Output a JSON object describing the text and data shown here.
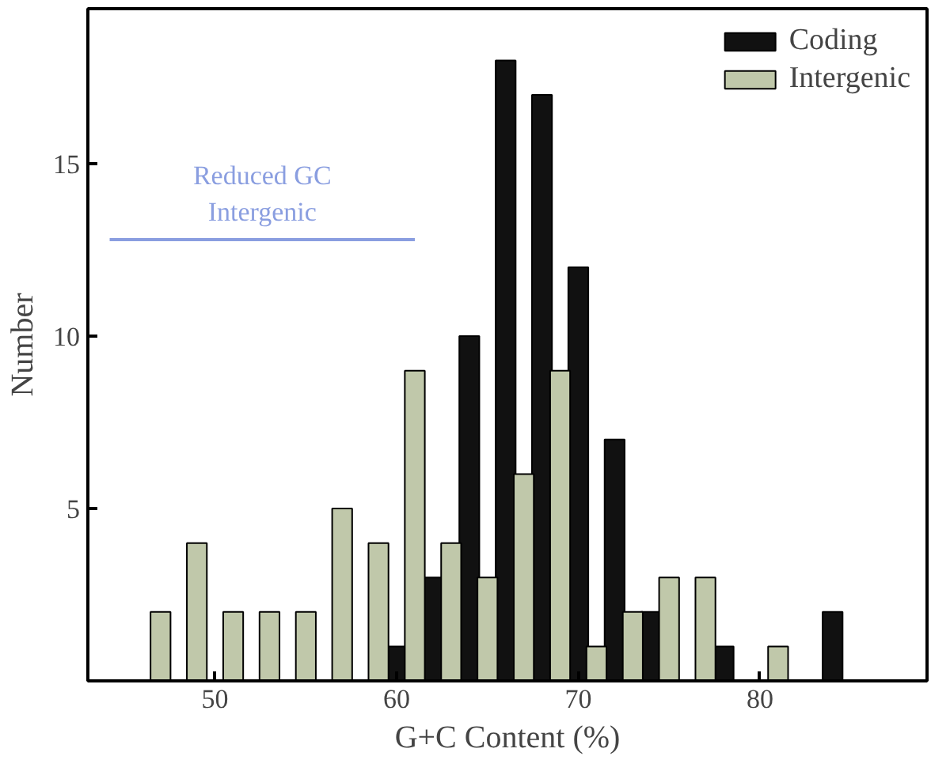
{
  "chart_data": {
    "type": "bar",
    "xlabel": "G+C Content (%)",
    "ylabel": "Number",
    "xlim": [
      43,
      89.2
    ],
    "ylim": [
      0,
      19.5
    ],
    "xticks": [
      50,
      60,
      70,
      80
    ],
    "yticks": [
      5,
      10,
      15
    ],
    "grid": false,
    "legend": "top right",
    "series": [
      {
        "name": "Coding",
        "color": "#111111",
        "x": [
          60,
          62,
          64,
          66,
          68,
          70,
          72,
          74,
          78,
          84
        ],
        "values": [
          1,
          3,
          10,
          18,
          17,
          12,
          7,
          2,
          1,
          2
        ]
      },
      {
        "name": "Intergenic",
        "color": "#c0c8aa",
        "x": [
          47,
          49,
          51,
          53,
          55,
          57,
          59,
          61,
          63,
          65,
          67,
          69,
          71,
          73,
          75,
          77,
          81
        ],
        "values": [
          2,
          4,
          2,
          2,
          2,
          5,
          4,
          9,
          4,
          3,
          6,
          9,
          1,
          2,
          3,
          3,
          1
        ]
      },
      {
        "type": "line",
        "color": "#8a9ee0",
        "x": [
          44.2,
          61
        ],
        "values": [
          12.8,
          12.8
        ]
      }
    ],
    "annotations": [
      "Reduced GC\nIntergenic"
    ]
  }
}
